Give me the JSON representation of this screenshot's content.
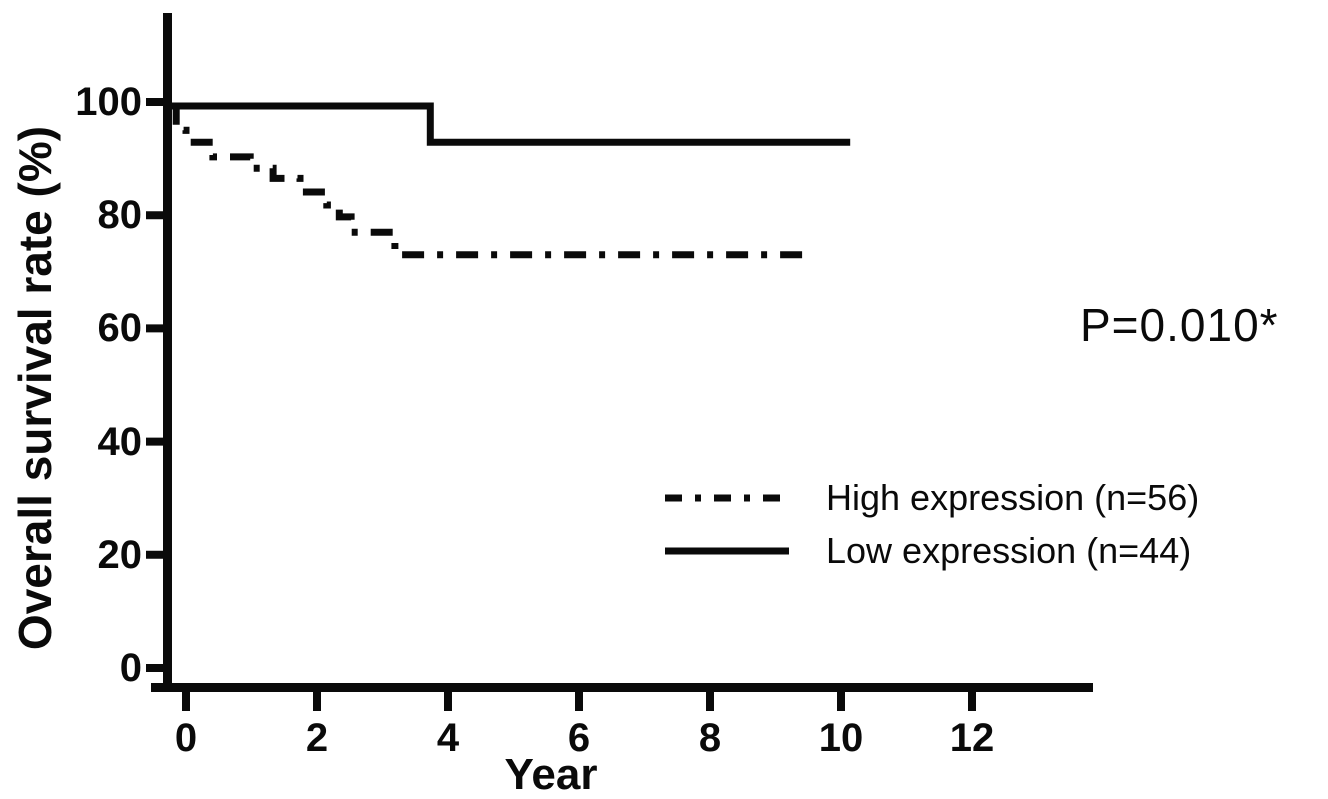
{
  "chart_data": {
    "type": "line",
    "subtype": "kaplan-meier-step-curve",
    "title": "",
    "xlabel": "Year",
    "ylabel": "Overall survival rate (%)",
    "annotation": "P=0.010*",
    "x_ticks": [
      0,
      2,
      4,
      6,
      8,
      10,
      12
    ],
    "y_ticks": [
      0,
      20,
      40,
      60,
      80,
      100
    ],
    "xlim": [
      -0.3,
      13.8
    ],
    "ylim": [
      0,
      100
    ],
    "grid": false,
    "legend_position": "inside-lower-right",
    "ink_color": "#0a0a0a",
    "background_color": "#ffffff",
    "series": [
      {
        "name": "High expression (n=56)",
        "line_style": "dash-dot",
        "color": "#0a0a0a",
        "start": [
          -0.2,
          99.3
        ],
        "steps": [
          [
            -0.15,
            95.0
          ],
          [
            0.0,
            92.9
          ],
          [
            0.41,
            90.3
          ],
          [
            0.98,
            88.3
          ],
          [
            1.33,
            86.5
          ],
          [
            1.74,
            84.1
          ],
          [
            2.15,
            81.8
          ],
          [
            2.34,
            79.7
          ],
          [
            2.52,
            77.0
          ],
          [
            3.19,
            73.0
          ]
        ],
        "end_year": 9.53,
        "final_value": 73.0
      },
      {
        "name": "Low expression (n=44)",
        "line_style": "solid",
        "color": "#0a0a0a",
        "start": [
          -0.24,
          99.3
        ],
        "steps": [
          [
            3.73,
            92.9
          ]
        ],
        "end_year": 10.14,
        "final_value": 92.9
      }
    ]
  }
}
